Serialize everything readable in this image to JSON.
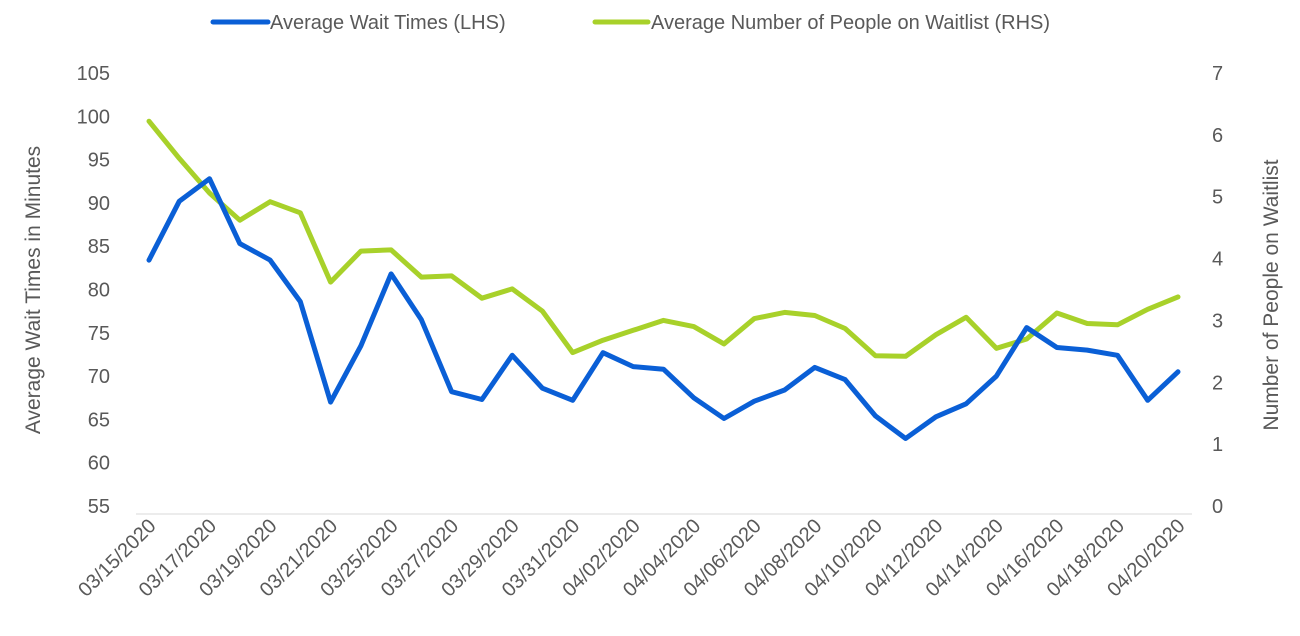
{
  "chart_data": {
    "type": "line",
    "categories": [
      "03/15/2020",
      "03/16/2020",
      "03/17/2020",
      "03/18/2020",
      "03/19/2020",
      "03/20/2020",
      "03/21/2020",
      "03/24/2020",
      "03/25/2020",
      "03/26/2020",
      "03/27/2020",
      "03/28/2020",
      "03/29/2020",
      "03/30/2020",
      "03/31/2020",
      "04/01/2020",
      "04/02/2020",
      "04/03/2020",
      "04/04/2020",
      "04/05/2020",
      "04/06/2020",
      "04/07/2020",
      "04/08/2020",
      "04/09/2020",
      "04/10/2020",
      "04/11/2020",
      "04/12/2020",
      "04/13/2020",
      "04/14/2020",
      "04/15/2020",
      "04/16/2020",
      "04/17/2020",
      "04/18/2020",
      "04/19/2020",
      "04/20/2020"
    ],
    "x_tick_labels": [
      "03/15/2020",
      "03/17/2020",
      "03/19/2020",
      "03/21/2020",
      "03/25/2020",
      "03/27/2020",
      "03/29/2020",
      "03/31/2020",
      "04/02/2020",
      "04/04/2020",
      "04/06/2020",
      "04/08/2020",
      "04/10/2020",
      "04/12/2020",
      "04/14/2020",
      "04/16/2020",
      "04/18/2020",
      "04/20/2020"
    ],
    "ylabel": "Average Wait Times in Minutes",
    "y2label": "Number of People on Waitlist",
    "ylim": [
      55,
      105
    ],
    "y_ticks": [
      55,
      60,
      65,
      70,
      75,
      80,
      85,
      90,
      95,
      100,
      105
    ],
    "y2lim": [
      0,
      7
    ],
    "y2_ticks": [
      0,
      1,
      2,
      3,
      4,
      5,
      6,
      7
    ],
    "grid": false,
    "legend_position": "top",
    "series": [
      {
        "name": "Average Wait Times (LHS)",
        "axis": "left",
        "color": "#0a5fd6",
        "values": [
          83.4,
          90.2,
          92.8,
          85.3,
          83.4,
          78.6,
          67.0,
          73.5,
          81.8,
          76.5,
          68.2,
          67.3,
          72.4,
          68.6,
          67.2,
          72.7,
          71.1,
          70.8,
          67.5,
          65.1,
          67.1,
          68.4,
          71.0,
          69.6,
          65.4,
          62.8,
          65.3,
          66.8,
          70.0,
          75.6,
          73.3,
          73.0,
          72.4,
          67.2,
          70.5
        ]
      },
      {
        "name": "Average Number of People on Waitlist (RHS)",
        "axis": "right",
        "color": "#a8d12a",
        "values": [
          6.22,
          5.62,
          5.06,
          4.62,
          4.92,
          4.74,
          3.62,
          4.12,
          4.14,
          3.7,
          3.72,
          3.36,
          3.51,
          3.15,
          2.48,
          2.68,
          2.84,
          3.0,
          2.9,
          2.62,
          3.03,
          3.13,
          3.08,
          2.87,
          2.43,
          2.42,
          2.77,
          3.05,
          2.55,
          2.7,
          3.12,
          2.95,
          2.93,
          3.18,
          3.38
        ]
      }
    ]
  }
}
